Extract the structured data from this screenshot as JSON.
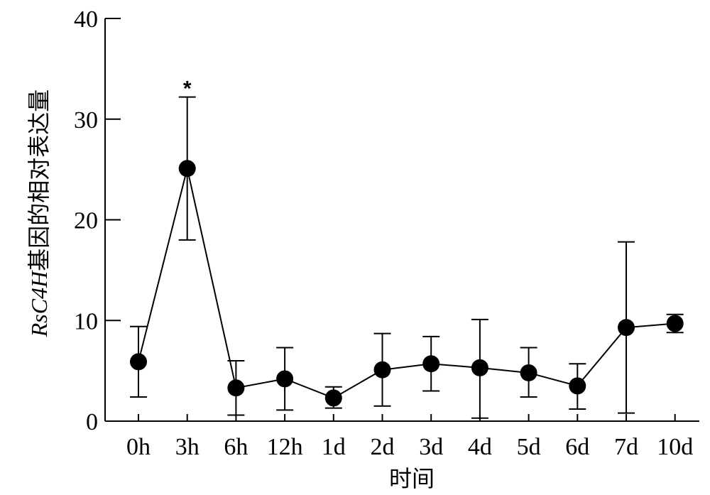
{
  "chart_data": {
    "type": "line",
    "xlabel": "时间",
    "ylabel_italic": "RsC4H",
    "ylabel_rest": "基因的相对表达量",
    "ylim": [
      0,
      40
    ],
    "yticks": [
      "0",
      "10",
      "20",
      "30",
      "40"
    ],
    "categories": [
      "0h",
      "3h",
      "6h",
      "12h",
      "1d",
      "2d",
      "3d",
      "4d",
      "5d",
      "6d",
      "7d",
      "10d"
    ],
    "series": [
      {
        "values": [
          5.9,
          25.1,
          3.3,
          4.2,
          2.3,
          5.1,
          5.7,
          5.3,
          4.8,
          3.5,
          9.3,
          9.7
        ],
        "error_upper": [
          9.4,
          32.2,
          6.0,
          7.3,
          3.4,
          8.7,
          8.4,
          10.1,
          7.3,
          5.7,
          17.8,
          10.6
        ],
        "error_lower": [
          2.4,
          18.0,
          0.6,
          1.1,
          1.3,
          1.5,
          3.0,
          0.3,
          2.4,
          1.2,
          0.8,
          8.8
        ],
        "marker": "filled-circle",
        "color": "#000000",
        "line": true
      }
    ],
    "annotations": [
      {
        "category": "3h",
        "text": "*"
      }
    ],
    "grid": false,
    "legend": "none"
  }
}
